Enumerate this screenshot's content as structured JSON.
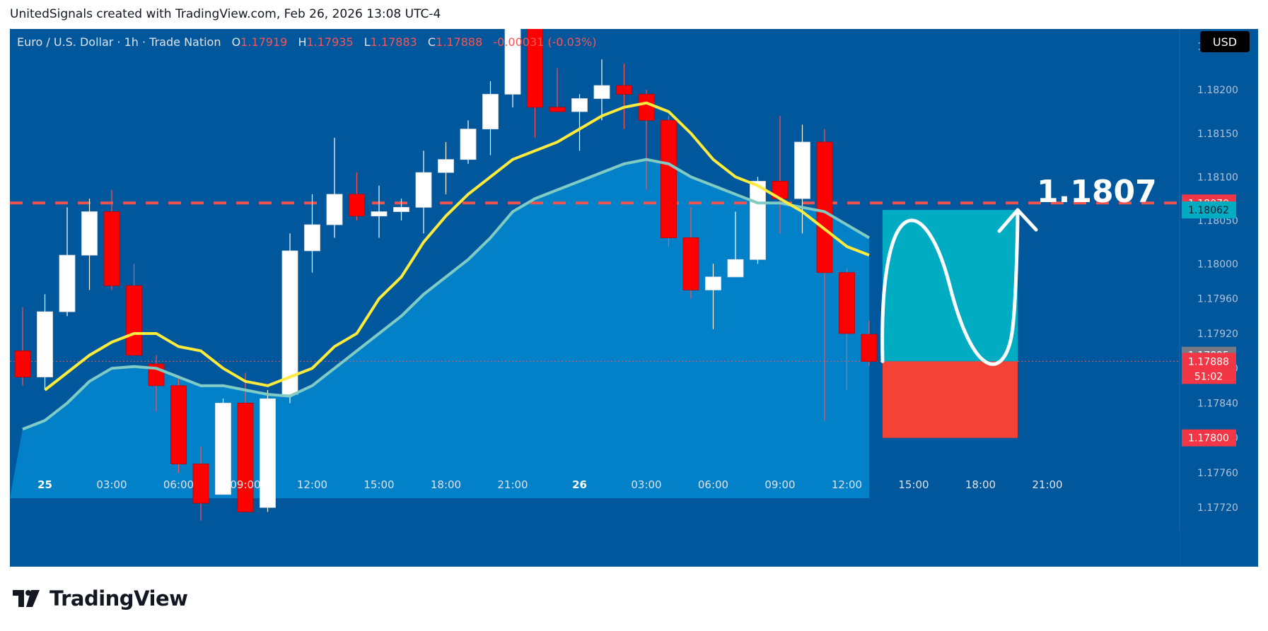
{
  "attribution": "UnitedSignals created with TradingView.com, Feb 26, 2026 13:08 UTC-4",
  "legend": {
    "symbol": "Euro / U.S. Dollar · 1h · Trade Nation",
    "o_label": "O",
    "o_value": "1.17919",
    "h_label": "H",
    "h_value": "1.17935",
    "l_label": "L",
    "l_value": "1.17883",
    "c_label": "C",
    "c_value": "1.17888",
    "change": "-0.00031 (-0.03%)"
  },
  "currency_button": "USD",
  "annotation_text": "1.1807",
  "price_tags": {
    "level": "1.18070",
    "target_top": "1.18062",
    "current_gray": "1.17895",
    "last_price": "1.17888",
    "countdown": "51:02",
    "stop": "1.17800"
  },
  "footer_logo": "TradingView",
  "colors": {
    "background": "#01579b",
    "up_candle": "#ffffff",
    "down_candle": "#ff0000",
    "ma_fast": "#ffeb3b",
    "ma_slow": "#80cbc4",
    "area_fill": "#0288d1",
    "dashed_level": "#ef5350",
    "target_zone": "#00acc1",
    "stop_zone": "#f44336"
  },
  "chart_data": {
    "type": "candlestick",
    "timeframe": "1h",
    "ylim": [
      1.17695,
      1.1827
    ],
    "y_ticks": [
      "1.18250",
      "1.18200",
      "1.18150",
      "1.18100",
      "1.18050",
      "1.18000",
      "1.17960",
      "1.17920",
      "1.17880",
      "1.17840",
      "1.17800",
      "1.17760",
      "1.17720"
    ],
    "x_ticks": [
      {
        "label": "25",
        "bold": true,
        "index": 1
      },
      {
        "label": "03:00",
        "index": 4
      },
      {
        "label": "06:00",
        "index": 7
      },
      {
        "label": "09:00",
        "index": 10
      },
      {
        "label": "12:00",
        "index": 13
      },
      {
        "label": "15:00",
        "index": 16
      },
      {
        "label": "18:00",
        "index": 19
      },
      {
        "label": "21:00",
        "index": 22
      },
      {
        "label": "26",
        "bold": true,
        "index": 25
      },
      {
        "label": "03:00",
        "index": 28
      },
      {
        "label": "06:00",
        "index": 31
      },
      {
        "label": "09:00",
        "index": 34
      },
      {
        "label": "12:00",
        "index": 37
      },
      {
        "label": "15:00",
        "index": 40
      },
      {
        "label": "18:00",
        "index": 43
      },
      {
        "label": "21:00",
        "index": 46
      }
    ],
    "candles": [
      {
        "o": 1.179,
        "h": 1.1795,
        "l": 1.1786,
        "c": 1.1787
      },
      {
        "o": 1.1787,
        "h": 1.17965,
        "l": 1.17855,
        "c": 1.17945
      },
      {
        "o": 1.17945,
        "h": 1.18065,
        "l": 1.1794,
        "c": 1.1801
      },
      {
        "o": 1.1801,
        "h": 1.18075,
        "l": 1.1797,
        "c": 1.1806
      },
      {
        "o": 1.1806,
        "h": 1.18085,
        "l": 1.1797,
        "c": 1.17975
      },
      {
        "o": 1.17975,
        "h": 1.18,
        "l": 1.17895,
        "c": 1.17895
      },
      {
        "o": 1.17885,
        "h": 1.17895,
        "l": 1.1783,
        "c": 1.1786
      },
      {
        "o": 1.1786,
        "h": 1.1787,
        "l": 1.1776,
        "c": 1.1777
      },
      {
        "o": 1.1777,
        "h": 1.1779,
        "l": 1.17705,
        "c": 1.17725
      },
      {
        "o": 1.17735,
        "h": 1.17845,
        "l": 1.17735,
        "c": 1.1784
      },
      {
        "o": 1.1784,
        "h": 1.17875,
        "l": 1.17715,
        "c": 1.17715
      },
      {
        "o": 1.1772,
        "h": 1.17855,
        "l": 1.17715,
        "c": 1.17845
      },
      {
        "o": 1.1785,
        "h": 1.18035,
        "l": 1.1784,
        "c": 1.18015
      },
      {
        "o": 1.18015,
        "h": 1.1808,
        "l": 1.1799,
        "c": 1.18045
      },
      {
        "o": 1.18045,
        "h": 1.18145,
        "l": 1.1803,
        "c": 1.1808
      },
      {
        "o": 1.1808,
        "h": 1.18105,
        "l": 1.1805,
        "c": 1.18055
      },
      {
        "o": 1.18055,
        "h": 1.1809,
        "l": 1.1803,
        "c": 1.1806
      },
      {
        "o": 1.1806,
        "h": 1.18075,
        "l": 1.1805,
        "c": 1.18065
      },
      {
        "o": 1.18065,
        "h": 1.1813,
        "l": 1.18035,
        "c": 1.18105
      },
      {
        "o": 1.18105,
        "h": 1.1814,
        "l": 1.1808,
        "c": 1.1812
      },
      {
        "o": 1.1812,
        "h": 1.18165,
        "l": 1.18115,
        "c": 1.18155
      },
      {
        "o": 1.18155,
        "h": 1.1821,
        "l": 1.18125,
        "c": 1.18195
      },
      {
        "o": 1.18195,
        "h": 1.18285,
        "l": 1.1818,
        "c": 1.1828
      },
      {
        "o": 1.1828,
        "h": 1.18285,
        "l": 1.18145,
        "c": 1.1818
      },
      {
        "o": 1.1818,
        "h": 1.18225,
        "l": 1.1818,
        "c": 1.18175
      },
      {
        "o": 1.18175,
        "h": 1.18195,
        "l": 1.1813,
        "c": 1.1819
      },
      {
        "o": 1.1819,
        "h": 1.18235,
        "l": 1.18165,
        "c": 1.18205
      },
      {
        "o": 1.18205,
        "h": 1.1823,
        "l": 1.18155,
        "c": 1.18195
      },
      {
        "o": 1.18195,
        "h": 1.182,
        "l": 1.18085,
        "c": 1.18165
      },
      {
        "o": 1.18165,
        "h": 1.1817,
        "l": 1.1802,
        "c": 1.1803
      },
      {
        "o": 1.1803,
        "h": 1.18065,
        "l": 1.1796,
        "c": 1.1797
      },
      {
        "o": 1.1797,
        "h": 1.18,
        "l": 1.17925,
        "c": 1.17985
      },
      {
        "o": 1.17985,
        "h": 1.1806,
        "l": 1.17985,
        "c": 1.18005
      },
      {
        "o": 1.18005,
        "h": 1.181,
        "l": 1.18,
        "c": 1.18095
      },
      {
        "o": 1.18095,
        "h": 1.1817,
        "l": 1.18035,
        "c": 1.18075
      },
      {
        "o": 1.18075,
        "h": 1.1816,
        "l": 1.18035,
        "c": 1.1814
      },
      {
        "o": 1.1814,
        "h": 1.18155,
        "l": 1.1782,
        "c": 1.1799
      },
      {
        "o": 1.1799,
        "h": 1.17995,
        "l": 1.17855,
        "c": 1.1792
      },
      {
        "o": 1.17919,
        "h": 1.17935,
        "l": 1.17883,
        "c": 1.17888
      }
    ],
    "ma_fast": [
      null,
      1.17855,
      1.17875,
      1.17895,
      1.1791,
      1.1792,
      1.1792,
      1.17905,
      1.179,
      1.1788,
      1.17865,
      1.1786,
      1.1787,
      1.1788,
      1.17905,
      1.1792,
      1.1796,
      1.17985,
      1.18025,
      1.18055,
      1.1808,
      1.181,
      1.1812,
      1.1813,
      1.1814,
      1.18155,
      1.1817,
      1.1818,
      1.18185,
      1.18175,
      1.1815,
      1.1812,
      1.181,
      1.1809,
      1.18075,
      1.1806,
      1.1804,
      1.1802,
      1.1801
    ],
    "ma_slow": [
      1.1781,
      1.1782,
      1.1784,
      1.17865,
      1.1788,
      1.17882,
      1.1788,
      1.1787,
      1.1786,
      1.1786,
      1.17855,
      1.1785,
      1.17848,
      1.1786,
      1.1788,
      1.179,
      1.1792,
      1.1794,
      1.17965,
      1.17985,
      1.18005,
      1.1803,
      1.1806,
      1.18075,
      1.18085,
      1.18095,
      1.18105,
      1.18115,
      1.1812,
      1.18115,
      1.181,
      1.1809,
      1.1808,
      1.1807,
      1.1807,
      1.18065,
      1.1806,
      1.18045,
      1.1803
    ],
    "level_line": 1.1807,
    "target_zone": {
      "top": 1.18062,
      "bottom": 1.17888
    },
    "stop_zone": {
      "top": 1.17888,
      "bottom": 1.178
    }
  }
}
